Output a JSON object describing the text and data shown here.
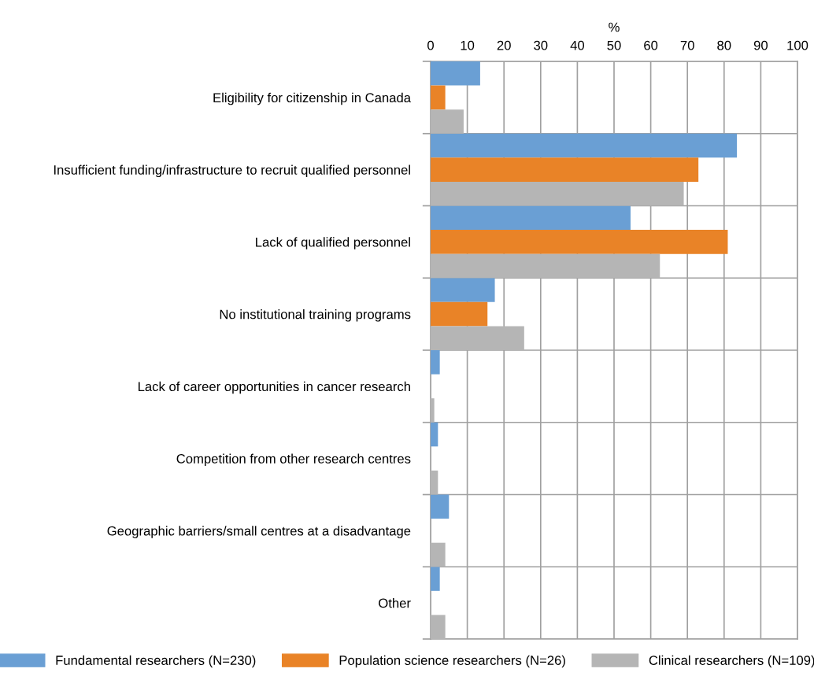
{
  "chart_data": {
    "type": "bar",
    "orientation": "horizontal",
    "xlabel": "%",
    "categories": [
      "Eligibility for citizenship in Canada",
      "Insufficient funding/infrastructure to recruit qualified personnel",
      "Lack of qualified personnel",
      "No institutional training programs",
      "Lack of career opportunities in cancer research",
      "Competition from other research centres",
      "Geographic barriers/small centres at a disadvantage",
      "Other"
    ],
    "series": [
      {
        "name": "Fundamental researchers (N=230)",
        "color": "#6a9fd4",
        "values": [
          13.5,
          83.5,
          54.5,
          17.5,
          2.5,
          2,
          5,
          2.5
        ]
      },
      {
        "name": "Population science researchers (N=26)",
        "color": "#e98327",
        "values": [
          4,
          73,
          81,
          15.5,
          0,
          0,
          0,
          0
        ]
      },
      {
        "name": "Clinical researchers (N=109)",
        "color": "#b5b5b5",
        "values": [
          9,
          69,
          62.5,
          25.5,
          1,
          2,
          4,
          4
        ]
      }
    ],
    "xlim": [
      0,
      100
    ],
    "xticks": [
      0,
      10,
      20,
      30,
      40,
      50,
      60,
      70,
      80,
      90,
      100
    ],
    "grid": true,
    "legend": "bottom"
  }
}
